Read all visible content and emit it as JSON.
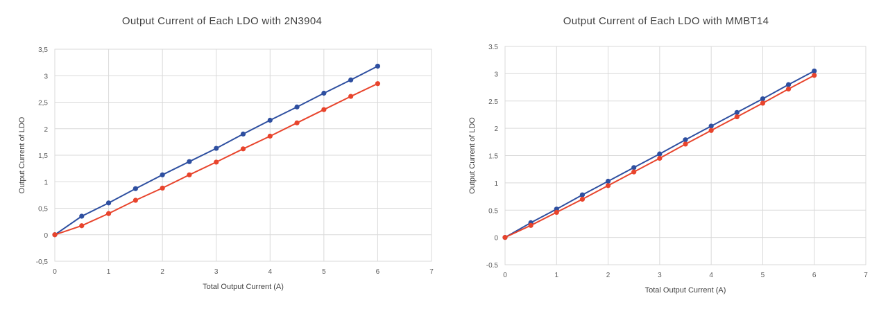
{
  "chart_data": [
    {
      "type": "line",
      "title": "Output Current of Each LDO with 2N3904",
      "xlabel": "Total Output Current (A)",
      "ylabel": "Output Current of LDO",
      "xlim": [
        0,
        7
      ],
      "ylim": [
        -0.5,
        3.5
      ],
      "x_ticks": [
        0,
        1,
        2,
        3,
        4,
        5,
        6,
        7
      ],
      "x_tick_labels": [
        "0",
        "1",
        "2",
        "3",
        "4",
        "5",
        "6",
        "7"
      ],
      "y_ticks": [
        -0.5,
        0,
        0.5,
        1,
        1.5,
        2,
        2.5,
        3,
        3.5
      ],
      "y_tick_labels": [
        "-0,5",
        "0",
        "0,5",
        "1",
        "1,5",
        "2",
        "2,5",
        "3",
        "3,5"
      ],
      "grid": true,
      "legend": "none",
      "series": [
        {
          "color": "#2e4fa0",
          "x": [
            0,
            0.5,
            1,
            1.5,
            2,
            2.5,
            3,
            3.5,
            4,
            4.5,
            5,
            5.5,
            6
          ],
          "y": [
            0,
            0.35,
            0.6,
            0.87,
            1.13,
            1.38,
            1.63,
            1.9,
            2.16,
            2.41,
            2.67,
            2.92,
            3.18
          ]
        },
        {
          "color": "#e8442c",
          "x": [
            0,
            0.5,
            1,
            1.5,
            2,
            2.5,
            3,
            3.5,
            4,
            4.5,
            5,
            5.5,
            6
          ],
          "y": [
            0,
            0.17,
            0.4,
            0.65,
            0.88,
            1.13,
            1.37,
            1.62,
            1.86,
            2.11,
            2.36,
            2.61,
            2.85
          ]
        }
      ]
    },
    {
      "type": "line",
      "title": "Output Current of Each LDO with MMBT14",
      "xlabel": "Total Output Current (A)",
      "ylabel": "Output Current of LDO",
      "xlim": [
        0,
        7
      ],
      "ylim": [
        -0.5,
        3.5
      ],
      "x_ticks": [
        0,
        1,
        2,
        3,
        4,
        5,
        6,
        7
      ],
      "x_tick_labels": [
        "0",
        "1",
        "2",
        "3",
        "4",
        "5",
        "6",
        "7"
      ],
      "y_ticks": [
        -0.5,
        0,
        0.5,
        1,
        1.5,
        2,
        2.5,
        3,
        3.5
      ],
      "y_tick_labels": [
        "-0.5",
        "0",
        "0.5",
        "1",
        "1.5",
        "2",
        "2.5",
        "3",
        "3.5"
      ],
      "grid": true,
      "legend": "none",
      "series": [
        {
          "color": "#2e4fa0",
          "x": [
            0,
            0.5,
            1,
            1.5,
            2,
            2.5,
            3,
            3.5,
            4,
            4.5,
            5,
            5.5,
            6
          ],
          "y": [
            0,
            0.27,
            0.52,
            0.78,
            1.03,
            1.28,
            1.53,
            1.79,
            2.04,
            2.29,
            2.54,
            2.8,
            3.05
          ]
        },
        {
          "color": "#e8442c",
          "x": [
            0,
            0.5,
            1,
            1.5,
            2,
            2.5,
            3,
            3.5,
            4,
            4.5,
            5,
            5.5,
            6
          ],
          "y": [
            0,
            0.22,
            0.46,
            0.7,
            0.95,
            1.2,
            1.45,
            1.71,
            1.96,
            2.21,
            2.46,
            2.72,
            2.97
          ]
        }
      ]
    }
  ]
}
